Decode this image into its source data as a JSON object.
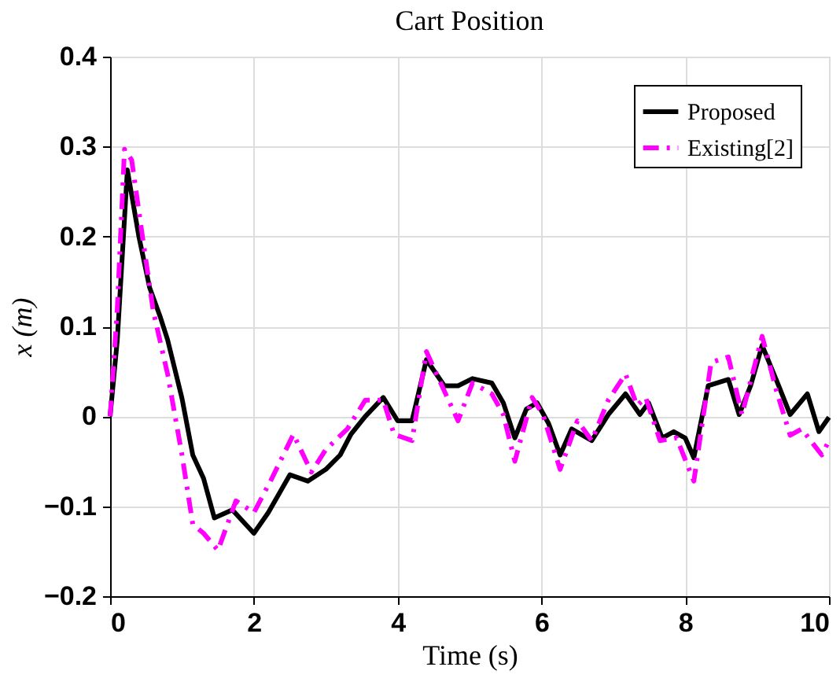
{
  "chart_data": {
    "type": "line",
    "title": "Cart Position",
    "xlabel": "Time (s)",
    "ylabel": "x (m)",
    "xlim": [
      0,
      10
    ],
    "xticks": [
      0,
      2,
      4,
      6,
      8,
      10
    ],
    "ylim": [
      -0.2,
      0.4
    ],
    "yticks": [
      -0.2,
      -0.1,
      0,
      0.1,
      0.2,
      0.3,
      0.4
    ],
    "grid": true,
    "legend": "top right",
    "marker": "none",
    "series": [
      {
        "name": "Proposed",
        "color": "#000000",
        "line_style": "solid",
        "x": [
          0,
          0.1,
          0.24,
          0.4,
          0.55,
          0.7,
          0.8,
          1.0,
          1.15,
          1.3,
          1.45,
          1.7,
          2.0,
          2.2,
          2.5,
          2.75,
          3.0,
          3.2,
          3.35,
          3.55,
          3.8,
          4.0,
          4.2,
          4.4,
          4.65,
          4.84,
          5.04,
          5.31,
          5.47,
          5.63,
          5.79,
          5.94,
          6.1,
          6.26,
          6.42,
          6.7,
          6.93,
          7.17,
          7.37,
          7.49,
          7.68,
          7.84,
          8.0,
          8.12,
          8.32,
          8.6,
          8.75,
          8.91,
          9.07,
          9.3,
          9.46,
          9.7,
          9.86,
          10
        ],
        "values": [
          0,
          0.085,
          0.274,
          0.2,
          0.143,
          0.11,
          0.085,
          0.02,
          -0.043,
          -0.069,
          -0.113,
          -0.104,
          -0.13,
          -0.107,
          -0.065,
          -0.072,
          -0.059,
          -0.043,
          -0.02,
          0,
          0.021,
          -0.005,
          -0.005,
          0.063,
          0.034,
          0.034,
          0.042,
          0.037,
          0.015,
          -0.024,
          0.008,
          0.015,
          -0.008,
          -0.043,
          -0.014,
          -0.027,
          0.002,
          0.025,
          0.002,
          0.015,
          -0.024,
          -0.017,
          -0.024,
          -0.046,
          0.034,
          0.041,
          0.002,
          0.034,
          0.079,
          0.034,
          0.002,
          0.025,
          -0.017,
          -0.001
        ]
      },
      {
        "name": "Existing[2]",
        "color": "#ff00ff",
        "line_style": "dashed",
        "x": [
          0,
          0.1,
          0.2,
          0.3,
          0.45,
          0.6,
          0.8,
          1.0,
          1.15,
          1.3,
          1.5,
          1.75,
          2.0,
          2.25,
          2.55,
          2.8,
          3.0,
          3.3,
          3.55,
          3.8,
          3.95,
          4.2,
          4.4,
          4.65,
          4.84,
          5.04,
          5.31,
          5.47,
          5.63,
          5.87,
          6.02,
          6.26,
          6.5,
          6.7,
          6.93,
          7.17,
          7.33,
          7.45,
          7.65,
          7.88,
          8.12,
          8.36,
          8.6,
          8.79,
          9.07,
          9.27,
          9.46,
          9.62,
          9.9,
          10
        ],
        "values": [
          0,
          0.12,
          0.297,
          0.285,
          0.2,
          0.117,
          0.047,
          -0.043,
          -0.12,
          -0.13,
          -0.149,
          -0.094,
          -0.107,
          -0.069,
          -0.02,
          -0.062,
          -0.037,
          -0.014,
          0.018,
          0.018,
          -0.02,
          -0.027,
          0.072,
          0.028,
          -0.005,
          0.037,
          0.025,
          0.002,
          -0.05,
          0.021,
          0.002,
          -0.059,
          -0.005,
          -0.027,
          0.018,
          0.047,
          0.012,
          0.021,
          -0.027,
          -0.024,
          -0.072,
          0.06,
          0.066,
          0.002,
          0.089,
          0.028,
          -0.021,
          -0.014,
          -0.043,
          -0.027
        ]
      }
    ]
  }
}
